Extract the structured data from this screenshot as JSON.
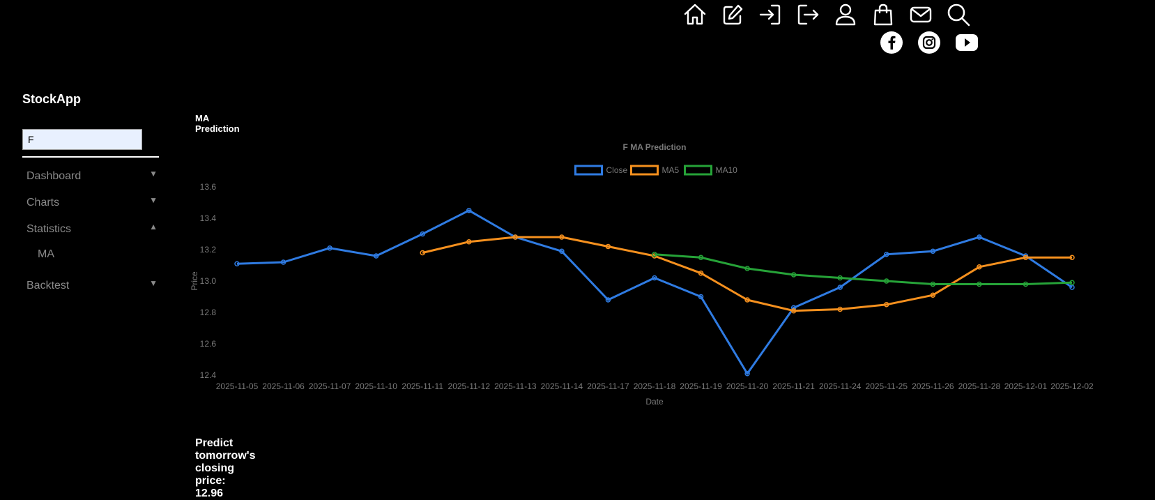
{
  "header": {
    "icons": [
      "home-icon",
      "edit-icon",
      "login-icon",
      "logout-icon",
      "user-icon",
      "shopping-bag-icon",
      "mail-icon",
      "search-icon"
    ],
    "social": [
      "facebook-icon",
      "instagram-icon",
      "youtube-icon"
    ]
  },
  "sidebar": {
    "brand": "StockApp",
    "search_value": "F",
    "items": [
      {
        "label": "Dashboard",
        "arrow": "▼"
      },
      {
        "label": "Charts",
        "arrow": "▼"
      },
      {
        "label": "Statistics",
        "arrow": "▲"
      },
      {
        "label": "Backtest",
        "arrow": "▼"
      }
    ],
    "subitems": [
      {
        "label": "MA"
      }
    ]
  },
  "main": {
    "section_title": "MA Prediction",
    "prediction_label": "Predict tomorrow's closing price:",
    "prediction_value": "12.96"
  },
  "chart_data": {
    "type": "line",
    "title": "F MA Prediction",
    "xlabel": "Date",
    "ylabel": "Price",
    "ylim": [
      12.4,
      13.6
    ],
    "yticks": [
      "12.4",
      "12.6",
      "12.8",
      "13.0",
      "13.2",
      "13.4",
      "13.6"
    ],
    "legend_position": "top-center",
    "categories": [
      "2025-11-05",
      "2025-11-06",
      "2025-11-07",
      "2025-11-10",
      "2025-11-11",
      "2025-11-12",
      "2025-11-13",
      "2025-11-14",
      "2025-11-17",
      "2025-11-18",
      "2025-11-19",
      "2025-11-20",
      "2025-11-21",
      "2025-11-24",
      "2025-11-25",
      "2025-11-26",
      "2025-11-28",
      "2025-12-01",
      "2025-12-02"
    ],
    "series": [
      {
        "name": "Close",
        "color": "#2f7be2",
        "values": [
          13.11,
          13.12,
          13.21,
          13.16,
          13.3,
          13.45,
          13.28,
          13.19,
          12.88,
          13.02,
          12.9,
          12.41,
          12.83,
          12.96,
          13.17,
          13.19,
          13.28,
          13.16,
          12.96
        ]
      },
      {
        "name": "MA5",
        "color": "#f5901e",
        "values": [
          null,
          null,
          null,
          null,
          13.18,
          13.25,
          13.28,
          13.28,
          13.22,
          13.16,
          13.05,
          12.88,
          12.81,
          12.82,
          12.85,
          12.91,
          13.09,
          13.15,
          13.15
        ]
      },
      {
        "name": "MA10",
        "color": "#26a338",
        "values": [
          null,
          null,
          null,
          null,
          null,
          null,
          null,
          null,
          null,
          13.17,
          13.15,
          13.08,
          13.04,
          13.02,
          13.0,
          12.98,
          12.98,
          12.98,
          12.99
        ]
      }
    ]
  }
}
